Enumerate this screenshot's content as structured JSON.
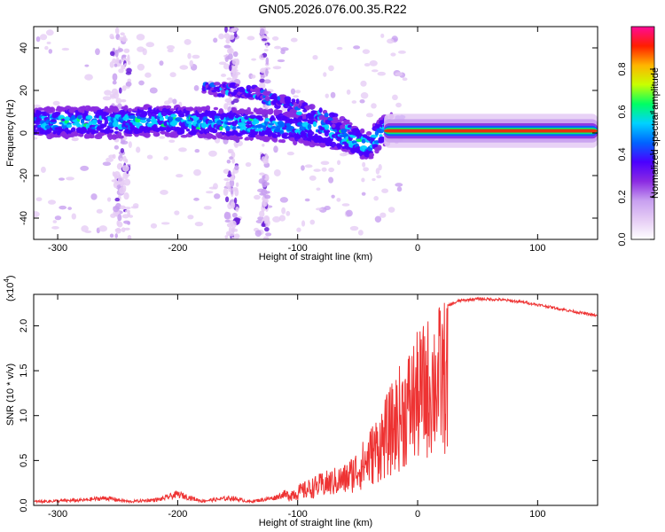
{
  "title": "GN05.2026.076.00.35.R22",
  "chart_data": [
    {
      "type": "heatmap",
      "title": "GN05.2026.076.00.35.R22",
      "xlabel": "Height of straight line (km)",
      "ylabel": "Frequency (Hz)",
      "xlim": [
        -320,
        150
      ],
      "ylim": [
        -50,
        50
      ],
      "xticks": [
        -300,
        -200,
        -100,
        0,
        100
      ],
      "xtick_labels": [
        "-300",
        "-200",
        "-100",
        "0",
        "100"
      ],
      "yticks": [
        -40,
        -20,
        0,
        20,
        40
      ],
      "ytick_labels": [
        "-40",
        "-20",
        "0",
        "20",
        "40"
      ],
      "colorbar": {
        "label": "Normalized spectral amplitude",
        "range": [
          0,
          1
        ],
        "ticks": [
          0,
          0.2,
          0.4,
          0.6,
          0.8
        ],
        "tick_labels": [
          "0.0",
          "0.2",
          "0.4",
          "0.6",
          "0.8"
        ],
        "colors": [
          "#ffffff",
          "#e6cdf5",
          "#c8a0f0",
          "#8b2be2",
          "#4b00ff",
          "#0064ff",
          "#00d2ff",
          "#00ff64",
          "#c8ff00",
          "#ffb400",
          "#ff1e00",
          "#ff0a96"
        ]
      },
      "main_band": [
        {
          "x": -315,
          "f": 5
        },
        {
          "x": -280,
          "f": 5
        },
        {
          "x": -250,
          "f": 5
        },
        {
          "x": -220,
          "f": 6
        },
        {
          "x": -180,
          "f": 5
        },
        {
          "x": -140,
          "f": 4
        },
        {
          "x": -110,
          "f": 3
        },
        {
          "x": -80,
          "f": 1
        },
        {
          "x": -55,
          "f": -3
        },
        {
          "x": -40,
          "f": -6
        },
        {
          "x": -30,
          "f": 1
        },
        {
          "x": -15,
          "f": 3
        },
        {
          "x": 0,
          "f": 2
        },
        {
          "x": 50,
          "f": 1
        },
        {
          "x": 100,
          "f": 1
        },
        {
          "x": 150,
          "f": 1
        }
      ],
      "upper_band": [
        {
          "x": -175,
          "f": 21
        },
        {
          "x": -150,
          "f": 20
        },
        {
          "x": -130,
          "f": 18
        },
        {
          "x": -110,
          "f": 14
        },
        {
          "x": -90,
          "f": 10
        },
        {
          "x": -70,
          "f": 6
        },
        {
          "x": -55,
          "f": 2
        }
      ]
    },
    {
      "type": "line",
      "xlabel": "Height of straight line (km)",
      "ylabel": "SNR (10 * v/v)",
      "multiplier": "(x10",
      "multiplier_exp": "4",
      "multiplier_close": ")",
      "color": "#ee3333",
      "xlim": [
        -320,
        150
      ],
      "ylim": [
        0,
        2.35
      ],
      "xticks": [
        -300,
        -200,
        -100,
        0,
        100
      ],
      "xtick_labels": [
        "-300",
        "-200",
        "-100",
        "0",
        "100"
      ],
      "yticks": [
        0,
        0.5,
        1.0,
        1.5,
        2.0
      ],
      "ytick_labels": [
        "0.0",
        "0.5",
        "1.0",
        "1.5",
        "2.0"
      ],
      "envelope": [
        {
          "x": -320,
          "y": 0.05
        },
        {
          "x": -280,
          "y": 0.07
        },
        {
          "x": -260,
          "y": 0.1
        },
        {
          "x": -240,
          "y": 0.05
        },
        {
          "x": -215,
          "y": 0.08
        },
        {
          "x": -200,
          "y": 0.15
        },
        {
          "x": -180,
          "y": 0.06
        },
        {
          "x": -155,
          "y": 0.1
        },
        {
          "x": -140,
          "y": 0.05
        },
        {
          "x": -120,
          "y": 0.1
        },
        {
          "x": -100,
          "y": 0.22
        },
        {
          "x": -80,
          "y": 0.35
        },
        {
          "x": -60,
          "y": 0.45
        },
        {
          "x": -45,
          "y": 0.7
        },
        {
          "x": -35,
          "y": 0.95
        },
        {
          "x": -25,
          "y": 1.2
        },
        {
          "x": -15,
          "y": 1.5
        },
        {
          "x": -5,
          "y": 1.75
        },
        {
          "x": 5,
          "y": 1.95
        },
        {
          "x": 15,
          "y": 2.12
        },
        {
          "x": 25,
          "y": 2.22
        },
        {
          "x": 35,
          "y": 2.28
        },
        {
          "x": 50,
          "y": 2.3
        },
        {
          "x": 70,
          "y": 2.29
        },
        {
          "x": 90,
          "y": 2.26
        },
        {
          "x": 110,
          "y": 2.21
        },
        {
          "x": 130,
          "y": 2.16
        },
        {
          "x": 150,
          "y": 2.11
        }
      ]
    }
  ]
}
